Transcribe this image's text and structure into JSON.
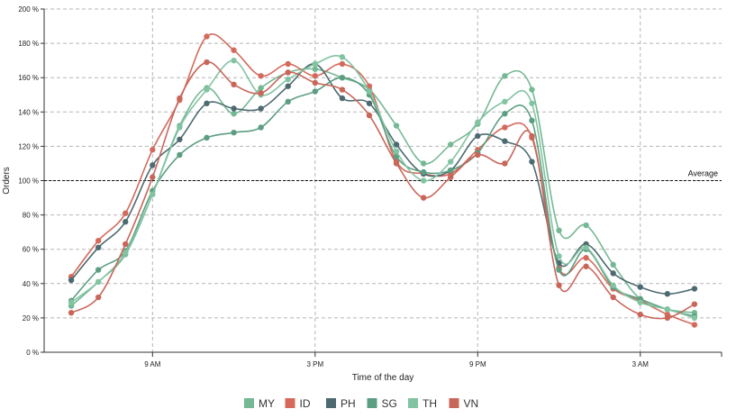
{
  "chart_data": {
    "type": "line",
    "xlabel": "Time of the day",
    "ylabel": "Orders",
    "x_ticks": [
      {
        "label": "9 AM",
        "hour": 9
      },
      {
        "label": "3 PM",
        "hour": 15
      },
      {
        "label": "9 PM",
        "hour": 21
      },
      {
        "label": "3 AM",
        "hour": 27
      }
    ],
    "x": [
      6,
      7,
      8,
      9,
      10,
      11,
      12,
      13,
      14,
      15,
      16,
      17,
      18,
      19,
      20,
      21,
      22,
      23,
      24,
      25,
      26,
      27,
      28,
      29
    ],
    "xlim": [
      5,
      30
    ],
    "y_ticks": [
      "0 %",
      "20 %",
      "40 %",
      "60 %",
      "80 %",
      "100 %",
      "120 %",
      "140 %",
      "160 %",
      "180 %",
      "200 %"
    ],
    "ylim": [
      0,
      200
    ],
    "grid": true,
    "average_line": {
      "value": 100,
      "label": "Average"
    },
    "legend_position": "bottom-center",
    "series": [
      {
        "name": "MY",
        "color": "#75b894",
        "values": [
          27,
          41,
          57,
          92,
          132,
          154,
          139,
          154,
          163,
          165,
          160,
          153,
          132,
          110,
          121,
          133,
          161,
          153,
          71,
          74,
          51,
          31,
          25,
          23
        ]
      },
      {
        "name": "ID",
        "color": "#d46a5c",
        "values": [
          44,
          65,
          81,
          118,
          147,
          184,
          176,
          161,
          168,
          161,
          168,
          155,
          111,
          104,
          104,
          118,
          131,
          125,
          49,
          55,
          37,
          30,
          22,
          16
        ]
      },
      {
        "name": "PH",
        "color": "#4d6a70",
        "values": [
          42,
          61,
          76,
          109,
          124,
          145,
          142,
          142,
          155,
          168,
          148,
          145,
          121,
          104,
          106,
          126,
          123,
          111,
          52,
          63,
          46,
          38,
          34,
          37
        ]
      },
      {
        "name": "SG",
        "color": "#5c9e82",
        "values": [
          30,
          48,
          59,
          94,
          115,
          125,
          128,
          131,
          146,
          152,
          160,
          150,
          114,
          105,
          106,
          116,
          139,
          135,
          48,
          60,
          38,
          31,
          25,
          21
        ]
      },
      {
        "name": "TH",
        "color": "#82c4a2",
        "values": [
          29,
          41,
          58,
          92,
          131,
          153,
          170,
          150,
          159,
          168,
          172,
          152,
          117,
          100,
          111,
          134,
          146,
          145,
          56,
          61,
          39,
          29,
          25,
          20
        ]
      },
      {
        "name": "VN",
        "color": "#c9665a",
        "values": [
          23,
          32,
          63,
          102,
          148,
          169,
          156,
          151,
          163,
          157,
          153,
          138,
          110,
          90,
          102,
          115,
          110,
          126,
          39,
          50,
          32,
          22,
          20,
          28
        ]
      }
    ]
  }
}
